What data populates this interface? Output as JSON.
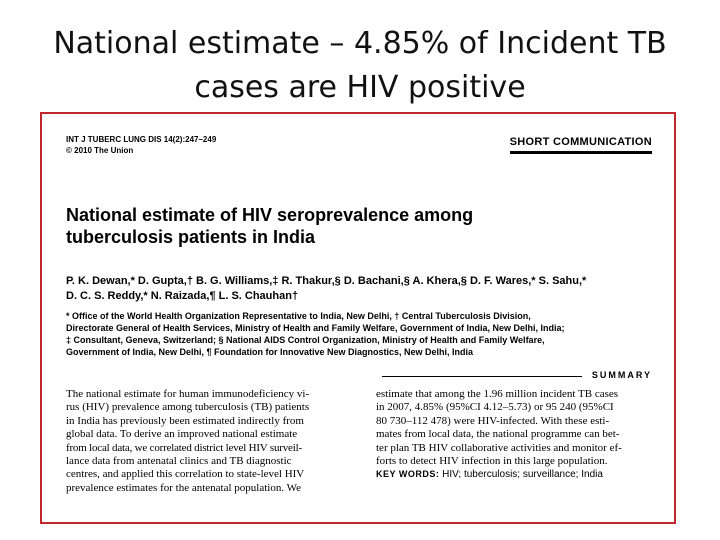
{
  "slide": {
    "title_line1": "National estimate – 4.85% of Incident TB",
    "title_line2": "cases are HIV positive"
  },
  "paper": {
    "journal_line1": "INT J TUBERC LUNG DIS 14(2):247–249",
    "journal_line2": "© 2010 The Union",
    "section_label": "SHORT COMMUNICATION",
    "title_line1": "National estimate of HIV seroprevalence among",
    "title_line2": "tuberculosis patients in India",
    "authors_line1": "P. K. Dewan,* D. Gupta,† B. G. Williams,‡ R. Thakur,§ D. Bachani,§ A. Khera,§ D. F. Wares,* S. Sahu,*",
    "authors_line2": "D. C. S. Reddy,* N. Raizada,¶ L. S. Chauhan†",
    "affiliations": [
      "* Office of the World Health Organization Representative to India, New Delhi, † Central Tuberculosis Division,",
      "Directorate General of Health Services, Ministry of Health and Family Welfare, Government of India, New Delhi, India;",
      "‡ Consultant, Geneva, Switzerland; § National AIDS Control Organization, Ministry of Health and Family Welfare,",
      "Government of India, New Delhi, ¶ Foundation for Innovative New Diagnostics, New Delhi, India"
    ],
    "summary_label": "SUMMARY",
    "summary_left": [
      "The national estimate for human immunodeficiency vi-",
      "rus (HIV) prevalence among tuberculosis (TB) patients",
      "in India has previously been estimated indirectly from",
      "global data. To derive an improved national estimate",
      "from local data, we correlated district level HIV surveil-",
      "lance data from antenatal clinics and TB diagnostic",
      "centres, and applied this correlation to state-level HIV",
      "prevalence estimates for the antenatal population. We"
    ],
    "summary_right": [
      "estimate that among the 1.96 million incident TB cases",
      "in 2007, 4.85% (95%CI 4.12–5.73) or 95 240 (95%CI",
      "80 730–112 478) were HIV-infected. With these esti-",
      "mates from local data, the national programme can bet-",
      "ter plan TB HIV collaborative activities and monitor ef-",
      "forts to detect HIV infection in this large population."
    ],
    "keywords_label": "KEY WORDS:",
    "keywords_text": "HIV; tuberculosis; surveillance; India"
  }
}
